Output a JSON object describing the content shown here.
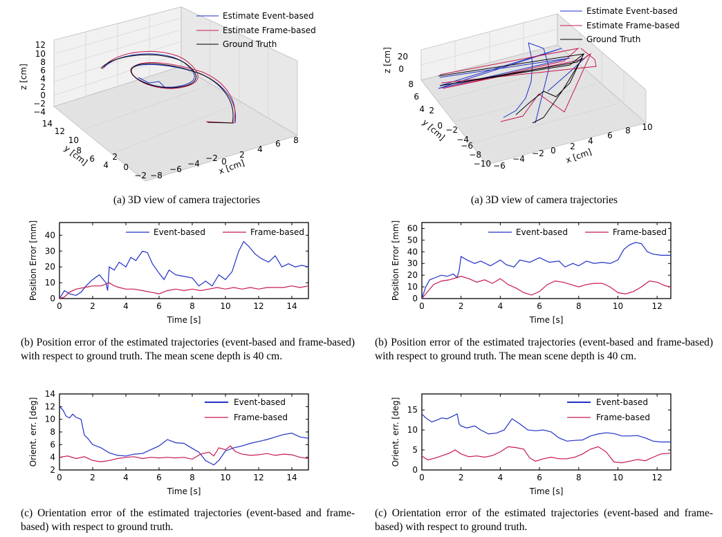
{
  "colors": {
    "event": "#1f2fc6",
    "frame": "#c8174f",
    "truth": "#000000"
  },
  "left": {
    "traj3d": {
      "legend": [
        "Estimate Event-based",
        "Estimate Frame-based",
        "Ground Truth"
      ],
      "zlabel": "z [cm]",
      "ylabel": "y [cm]",
      "xlabel": "x [cm]",
      "zticks": [
        "12",
        "10",
        "8",
        "6",
        "4",
        "2",
        "0",
        "−2",
        "−4"
      ],
      "yticks": [
        "14",
        "12",
        "10",
        "8",
        "6",
        "4",
        "2",
        "0",
        "−2"
      ],
      "xticks": [
        "−8",
        "−6",
        "−4",
        "−2",
        "0",
        "2",
        "4",
        "6",
        "8"
      ],
      "caption": "(a) 3D view of camera trajectories"
    },
    "pos_caption": "(b) Position error of the estimated trajectories (event-based and frame-based) with respect to ground truth. The mean scene depth is 40 cm.",
    "ori_caption": "(c) Orientation error of the estimated trajectories (event-based and frame-based) with respect to ground truth."
  },
  "right": {
    "traj3d": {
      "legend": [
        "Estimate Event-based",
        "Estimate Frame-based",
        "Ground Truth"
      ],
      "zlabel": "z [cm]",
      "ylabel": "y [cm]",
      "xlabel": "x [cm]",
      "zticks": [
        "20",
        "0"
      ],
      "yticks": [
        "8",
        "6",
        "4",
        "2",
        "0",
        "−2",
        "−4",
        "−6",
        "−8",
        "−10"
      ],
      "xticks": [
        "−6",
        "−4",
        "−2",
        "0",
        "2",
        "4",
        "6",
        "8",
        "10"
      ],
      "caption": "(a) 3D view of camera trajectories"
    },
    "pos_caption": "(b) Position error of the estimated trajectories (event-based and frame-based) with respect to ground truth. The mean scene depth is 40 cm.",
    "ori_caption": "(c) Orientation error of the estimated trajectories (event-based and frame-based) with respect to ground truth."
  },
  "chart_data": [
    {
      "id": "left-position",
      "type": "line",
      "xlabel": "Time [s]",
      "ylabel": "Position Error [mm]",
      "xlim": [
        0,
        15
      ],
      "ylim": [
        0,
        48
      ],
      "xticks": [
        0,
        2,
        4,
        6,
        8,
        10,
        12,
        14
      ],
      "yticks": [
        0,
        10,
        20,
        30,
        40
      ],
      "legend": "top",
      "series": [
        {
          "name": "Event-based",
          "x": [
            0,
            0.3,
            0.6,
            1.0,
            1.3,
            1.6,
            2.0,
            2.4,
            2.8,
            2.9,
            3.0,
            3.3,
            3.6,
            4.0,
            4.3,
            4.6,
            5.0,
            5.3,
            5.6,
            6.0,
            6.3,
            6.6,
            7.0,
            7.5,
            8.0,
            8.4,
            8.8,
            9.2,
            9.6,
            10.0,
            10.4,
            10.8,
            11.1,
            11.4,
            11.8,
            12.2,
            12.6,
            13.0,
            13.4,
            13.8,
            14.2,
            14.6,
            15.0
          ],
          "y": [
            0,
            5,
            3,
            2,
            4,
            8,
            12,
            15,
            10,
            5,
            20,
            18,
            23,
            20,
            26,
            24,
            30,
            29,
            22,
            16,
            12,
            18,
            15,
            14,
            13,
            8,
            11,
            8,
            15,
            12,
            17,
            30,
            36,
            33,
            28,
            25,
            23,
            27,
            20,
            22,
            20,
            21,
            20
          ]
        },
        {
          "name": "Frame-based",
          "x": [
            0,
            0.3,
            0.6,
            1.0,
            1.5,
            2.0,
            2.5,
            3.0,
            3.3,
            3.6,
            4.0,
            4.5,
            5.0,
            5.5,
            6.0,
            6.5,
            7.0,
            7.5,
            8.0,
            8.5,
            9.0,
            9.5,
            10.0,
            10.5,
            11.0,
            11.5,
            12.0,
            12.5,
            13.0,
            13.5,
            14.0,
            14.5,
            15.0
          ],
          "y": [
            0,
            1,
            4,
            6,
            7,
            8,
            8,
            10,
            8,
            7,
            6,
            6,
            5,
            4,
            3,
            5,
            6,
            5,
            6,
            5,
            6,
            7,
            6,
            7,
            6,
            7,
            6,
            7,
            7,
            7,
            8,
            7,
            8
          ]
        }
      ]
    },
    {
      "id": "right-position",
      "type": "line",
      "xlabel": "Time [s]",
      "ylabel": "Position Error [mm]",
      "xlim": [
        0,
        12.7
      ],
      "ylim": [
        0,
        65
      ],
      "xticks": [
        0,
        2,
        4,
        6,
        8,
        10,
        12
      ],
      "yticks": [
        0,
        10,
        20,
        30,
        40,
        50,
        60
      ],
      "legend": "top",
      "series": [
        {
          "name": "Event-based",
          "x": [
            0,
            0.2,
            0.4,
            0.7,
            1.0,
            1.3,
            1.6,
            1.8,
            1.9,
            2.0,
            2.3,
            2.7,
            3.0,
            3.5,
            4.0,
            4.3,
            4.7,
            5.0,
            5.5,
            6.0,
            6.5,
            7.0,
            7.3,
            7.7,
            8.0,
            8.4,
            8.8,
            9.2,
            9.6,
            10.0,
            10.3,
            10.6,
            10.9,
            11.2,
            11.5,
            11.8,
            12.2,
            12.7
          ],
          "y": [
            0,
            10,
            16,
            18,
            20,
            19,
            21,
            18,
            24,
            36,
            33,
            30,
            32,
            28,
            33,
            29,
            27,
            33,
            31,
            35,
            31,
            32,
            27,
            30,
            28,
            32,
            30,
            31,
            30,
            33,
            42,
            46,
            48,
            47,
            40,
            38,
            37,
            37
          ]
        },
        {
          "name": "Frame-based",
          "x": [
            0,
            0.3,
            0.6,
            1.0,
            1.4,
            1.8,
            2.0,
            2.4,
            2.8,
            3.2,
            3.6,
            4.0,
            4.4,
            4.8,
            5.2,
            5.6,
            6.0,
            6.4,
            6.8,
            7.2,
            7.6,
            8.0,
            8.4,
            8.8,
            9.2,
            9.6,
            10.0,
            10.4,
            10.8,
            11.2,
            11.6,
            12.0,
            12.4,
            12.7
          ],
          "y": [
            0,
            6,
            12,
            15,
            16,
            18,
            19,
            17,
            14,
            16,
            13,
            17,
            12,
            9,
            5,
            3,
            6,
            12,
            15,
            14,
            12,
            10,
            12,
            13,
            13,
            10,
            5,
            4,
            6,
            10,
            15,
            14,
            11,
            10
          ]
        }
      ]
    },
    {
      "id": "left-orientation",
      "type": "line",
      "xlabel": "Time [s]",
      "ylabel": "Orient. err. [deg]",
      "xlim": [
        0,
        15
      ],
      "ylim": [
        2,
        14
      ],
      "xticks": [
        0,
        2,
        4,
        6,
        8,
        10,
        12,
        14
      ],
      "yticks": [
        2,
        4,
        6,
        8,
        10,
        12,
        14
      ],
      "legend": "top-right",
      "series": [
        {
          "name": "Event-based",
          "x": [
            0,
            0.2,
            0.4,
            0.6,
            0.8,
            1.0,
            1.3,
            1.5,
            1.7,
            2.0,
            2.5,
            3.0,
            3.5,
            4.0,
            4.5,
            5.0,
            5.5,
            6.0,
            6.5,
            7.0,
            7.5,
            8.0,
            8.4,
            8.8,
            9.0,
            9.3,
            9.6,
            10.0,
            10.5,
            11.0,
            11.5,
            12.0,
            12.5,
            13.0,
            13.5,
            14.0,
            14.5,
            15.0
          ],
          "y": [
            12,
            11.5,
            10.5,
            10.2,
            10.8,
            10.3,
            10,
            7.5,
            7,
            6,
            5.5,
            4.7,
            4.3,
            4.2,
            4.5,
            4.6,
            5.2,
            5.8,
            6.8,
            6.3,
            6.2,
            5.4,
            4.8,
            3.5,
            3.2,
            2.8,
            3.5,
            5,
            5.5,
            5.8,
            6.2,
            6.5,
            6.8,
            7.2,
            7.6,
            7.8,
            7.2,
            7
          ]
        },
        {
          "name": "Frame-based",
          "x": [
            0,
            0.5,
            1.0,
            1.5,
            2.0,
            2.5,
            3.0,
            3.5,
            4.0,
            4.5,
            5.0,
            5.5,
            6.0,
            6.5,
            7.0,
            7.5,
            8.0,
            8.5,
            9.0,
            9.3,
            9.6,
            10.0,
            10.3,
            10.6,
            11.0,
            11.5,
            12.0,
            12.5,
            13.0,
            13.5,
            14.0,
            14.5,
            15.0
          ],
          "y": [
            4,
            4.2,
            3.8,
            4.1,
            3.5,
            3.3,
            3.5,
            3.8,
            4,
            4.1,
            3.8,
            4,
            3.9,
            4,
            3.9,
            4,
            3.7,
            4.5,
            4.8,
            4.2,
            5.5,
            5.2,
            5.8,
            4.9,
            4.5,
            4.3,
            4.4,
            4.6,
            4.3,
            4.5,
            4.4,
            4,
            3.8
          ]
        }
      ]
    },
    {
      "id": "right-orientation",
      "type": "line",
      "xlabel": "Time [s]",
      "ylabel": "Orient. err. [deg]",
      "xlim": [
        0,
        12.7
      ],
      "ylim": [
        0,
        19
      ],
      "xticks": [
        0,
        2,
        4,
        6,
        8,
        10,
        12
      ],
      "yticks": [
        0,
        5,
        10,
        15
      ],
      "legend": "top-right",
      "series": [
        {
          "name": "Event-based",
          "x": [
            0,
            0.2,
            0.5,
            0.8,
            1.0,
            1.3,
            1.6,
            1.8,
            1.9,
            2.0,
            2.3,
            2.7,
            3.0,
            3.4,
            3.8,
            4.2,
            4.6,
            5.0,
            5.4,
            5.8,
            6.2,
            6.6,
            7.0,
            7.4,
            7.8,
            8.2,
            8.6,
            9.0,
            9.4,
            9.8,
            10.2,
            10.6,
            11.0,
            11.4,
            11.8,
            12.2,
            12.7
          ],
          "y": [
            14,
            13,
            12,
            12.5,
            13,
            12.8,
            13.5,
            14,
            11.5,
            11,
            10.5,
            11,
            10,
            9,
            9.2,
            10,
            12.8,
            11.5,
            10,
            9.8,
            10,
            9.5,
            8,
            7.2,
            7.4,
            7.5,
            8.5,
            9,
            9.3,
            9.1,
            8.5,
            8.5,
            8.6,
            8,
            7.2,
            7,
            7
          ]
        },
        {
          "name": "Frame-based",
          "x": [
            0,
            0.3,
            0.7,
            1.0,
            1.4,
            1.7,
            2.0,
            2.4,
            2.8,
            3.2,
            3.6,
            4.0,
            4.4,
            4.8,
            5.2,
            5.5,
            5.8,
            6.2,
            6.6,
            7.0,
            7.4,
            7.8,
            8.2,
            8.6,
            9.0,
            9.4,
            9.8,
            10.2,
            10.6,
            11.0,
            11.4,
            11.8,
            12.2,
            12.7
          ],
          "y": [
            3.5,
            2.5,
            3,
            3.5,
            4.2,
            5,
            4,
            3.3,
            3.5,
            3.2,
            3.6,
            4.5,
            5.8,
            5.6,
            5.2,
            3,
            2.2,
            2.8,
            3.2,
            2.8,
            2.8,
            3.2,
            4,
            5.2,
            5.8,
            4.5,
            2,
            1.8,
            2.2,
            2.6,
            2.3,
            3.2,
            4,
            4.2
          ]
        }
      ]
    }
  ]
}
